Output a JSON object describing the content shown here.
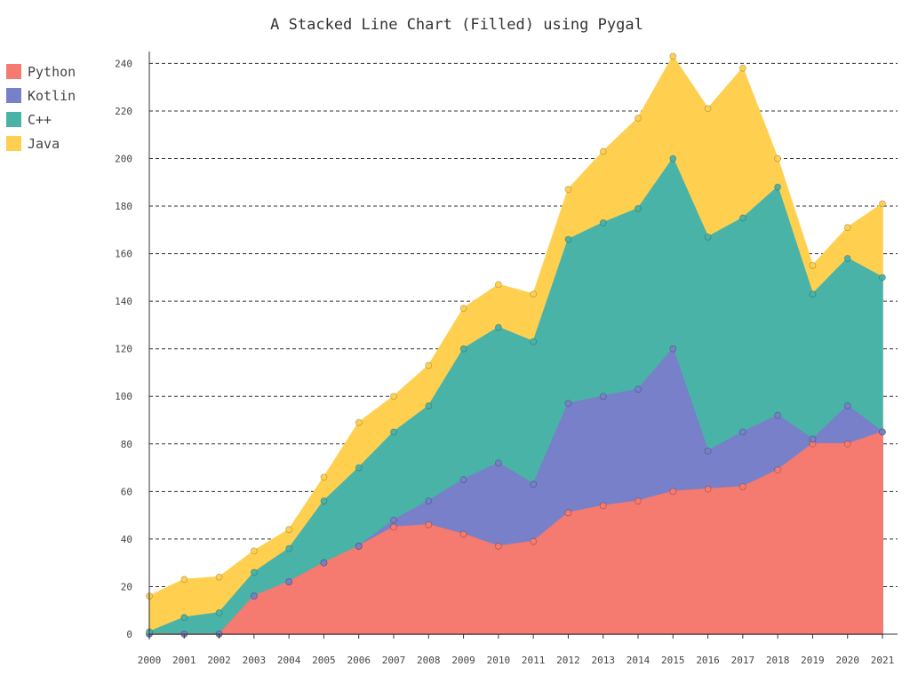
{
  "chart_data": {
    "type": "area",
    "stacked": true,
    "title": "A Stacked Line Chart (Filled) using Pygal",
    "xlabel": "",
    "ylabel": "",
    "categories": [
      "2000",
      "2001",
      "2002",
      "2003",
      "2004",
      "2005",
      "2006",
      "2007",
      "2008",
      "2009",
      "2010",
      "2011",
      "2012",
      "2013",
      "2014",
      "2015",
      "2016",
      "2017",
      "2018",
      "2019",
      "2020",
      "2021"
    ],
    "ylim": [
      0,
      245
    ],
    "yticks": [
      0,
      20,
      40,
      60,
      80,
      100,
      120,
      140,
      160,
      180,
      200,
      220,
      240
    ],
    "grid": true,
    "legend": "top-left",
    "series": [
      {
        "name": "Python",
        "color": "#F57A6F",
        "values": [
          0,
          0,
          0,
          16,
          22,
          30,
          37,
          45,
          46,
          42,
          37,
          39,
          51,
          54,
          56,
          60,
          61,
          62,
          69,
          80,
          80,
          85
        ]
      },
      {
        "name": "Kotlin",
        "color": "#7780C8",
        "values": [
          0,
          0,
          0,
          0,
          0,
          0,
          0,
          3,
          10,
          23,
          35,
          24,
          46,
          46,
          47,
          60,
          16,
          23,
          23,
          2,
          16,
          0
        ]
      },
      {
        "name": "C++",
        "color": "#49B3A8",
        "values": [
          1,
          7,
          9,
          10,
          14,
          26,
          33,
          37,
          40,
          55,
          57,
          60,
          69,
          73,
          76,
          80,
          90,
          90,
          96,
          61,
          62,
          65
        ]
      },
      {
        "name": "Java",
        "color": "#FFD050",
        "values": [
          15,
          16,
          15,
          9,
          8,
          10,
          19,
          15,
          17,
          17,
          18,
          20,
          21,
          30,
          38,
          43,
          54,
          63,
          12,
          12,
          13,
          31
        ]
      }
    ]
  }
}
